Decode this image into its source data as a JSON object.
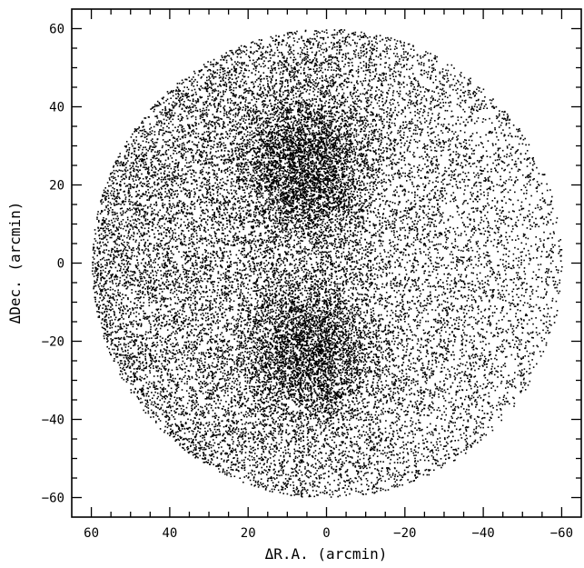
{
  "chart_data": {
    "type": "scatter",
    "title": "",
    "xlabel": "ΔR.A. (arcmin)",
    "ylabel": "ΔDec. (arcmin)",
    "xlim": [
      65,
      -65
    ],
    "ylim": [
      -65,
      65
    ],
    "x_ticks_major": [
      60,
      40,
      20,
      0,
      -20,
      -40,
      -60
    ],
    "y_ticks_major": [
      -60,
      -40,
      -20,
      0,
      20,
      40,
      60
    ],
    "x_tick_labels": [
      "60",
      "40",
      "20",
      "0",
      "−20",
      "−40",
      "−60"
    ],
    "y_tick_labels": [
      "−60",
      "−40",
      "−20",
      "0",
      "20",
      "40",
      "60"
    ],
    "minor_tick_step": 5,
    "grid": false,
    "legend": "none",
    "point_color": "#000000",
    "series": [
      {
        "field_center": [
          0,
          0
        ],
        "field_radius": 60,
        "approx_point_count": 24000,
        "density_maxima": [
          [
            5,
            25
          ],
          [
            4,
            -22
          ]
        ]
      }
    ]
  }
}
